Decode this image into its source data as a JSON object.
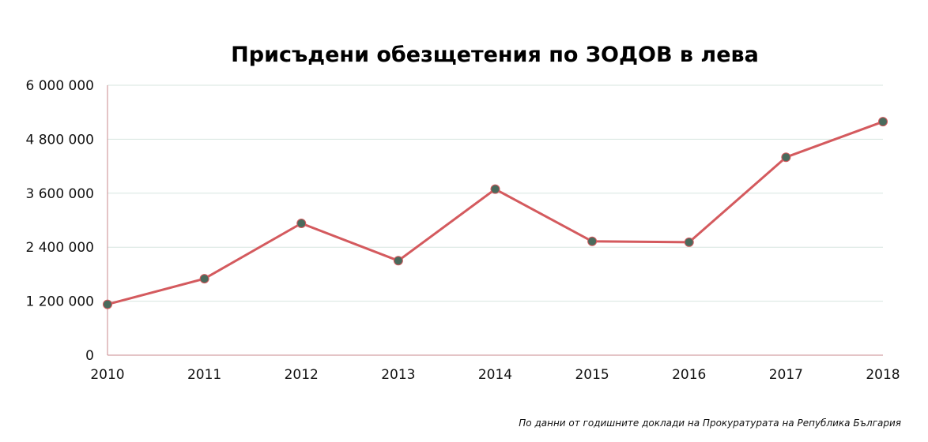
{
  "chart_data": {
    "type": "line",
    "title": "Присъдени обезщетения по ЗОДОВ в лева",
    "xlabel": "",
    "ylabel": "",
    "x": [
      "2010",
      "2011",
      "2012",
      "2013",
      "2014",
      "2015",
      "2016",
      "2017",
      "2018"
    ],
    "y_ticks": [
      "0",
      "1 200 000",
      "2 400 000",
      "3 600 000",
      "4 800 000",
      "6 000 000"
    ],
    "y_tick_values": [
      0,
      1200000,
      2400000,
      3600000,
      4800000,
      6000000
    ],
    "ylim": [
      0,
      6000000
    ],
    "series": [
      {
        "values": [
          1130000,
          1700000,
          2930000,
          2100000,
          3690000,
          2530000,
          2510000,
          4400000,
          5190000
        ]
      }
    ],
    "grid": "horizontal",
    "legend": "none",
    "colors": {
      "line": "#d45a5e",
      "marker": "#4a6a5c",
      "grid": "#d7e6df",
      "axis": "#c98a8c"
    },
    "source_note": "По данни от годишните доклади на Прокуратурата на Република България"
  }
}
